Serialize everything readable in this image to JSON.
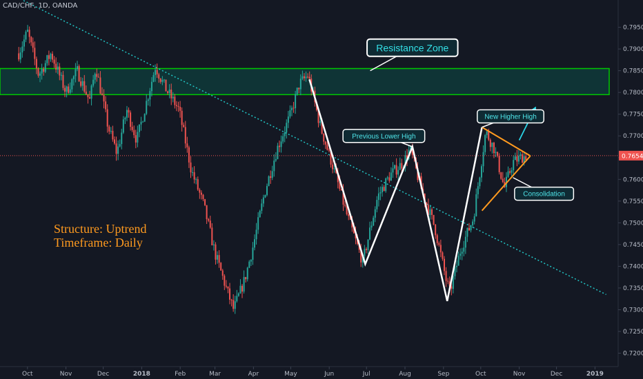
{
  "symbol_label": "CAD/CHF, 1D, OANDA",
  "structure_label": "Structure: Uptrend",
  "timeframe_label": "Timeframe: Daily",
  "colors": {
    "background": "#141823",
    "up_candle": "#26a69a",
    "down_candle": "#ef5350",
    "zone_border": "#00c800",
    "zone_fill": "#0e3a3a",
    "trendline": "#22c7c7",
    "zigzag": "#ffffff",
    "triangle": "#ff9a1f",
    "arrow": "#2ad4e6",
    "price_line": "#ef5350",
    "label_bg": "#0f2a33",
    "axis_text": "#b7bcc7"
  },
  "chart_data": {
    "type": "candlestick",
    "title": "CAD/CHF, 1D, OANDA",
    "x_ticks": [
      "Oct",
      "Nov",
      "Dec",
      "2018",
      "Feb",
      "Mar",
      "Apr",
      "May",
      "Jun",
      "Jul",
      "Aug",
      "Sep",
      "Oct",
      "Nov",
      "Dec",
      "2019"
    ],
    "y_ticks": [
      "0.79500",
      "0.79000",
      "0.78500",
      "0.78000",
      "0.77500",
      "0.77000",
      "0.76500",
      "0.76000",
      "0.75500",
      "0.75000",
      "0.74500",
      "0.74000",
      "0.73500",
      "0.73000",
      "0.72500",
      "0.72000"
    ],
    "ylim": [
      0.7185,
      0.7985
    ],
    "last_price": "0.76546",
    "price_path": [
      [
        "2017-09-24",
        0.789
      ],
      [
        "2017-10-01",
        0.794
      ],
      [
        "2017-10-10",
        0.784
      ],
      [
        "2017-10-20",
        0.789
      ],
      [
        "2017-11-01",
        0.78
      ],
      [
        "2017-11-10",
        0.785
      ],
      [
        "2017-11-20",
        0.778
      ],
      [
        "2017-11-25",
        0.786
      ],
      [
        "2017-12-05",
        0.772
      ],
      [
        "2017-12-12",
        0.766
      ],
      [
        "2017-12-20",
        0.776
      ],
      [
        "2017-12-28",
        0.769
      ],
      [
        "2018-01-05",
        0.778
      ],
      [
        "2018-01-12",
        0.786
      ],
      [
        "2018-01-20",
        0.781
      ],
      [
        "2018-01-31",
        0.776
      ],
      [
        "2018-02-10",
        0.762
      ],
      [
        "2018-02-20",
        0.754
      ],
      [
        "2018-03-01",
        0.743
      ],
      [
        "2018-03-10",
        0.735
      ],
      [
        "2018-03-16",
        0.73
      ],
      [
        "2018-03-25",
        0.737
      ],
      [
        "2018-04-01",
        0.745
      ],
      [
        "2018-04-10",
        0.757
      ],
      [
        "2018-04-20",
        0.767
      ],
      [
        "2018-05-01",
        0.775
      ],
      [
        "2018-05-08",
        0.782
      ],
      [
        "2018-05-15",
        0.784
      ],
      [
        "2018-05-25",
        0.772
      ],
      [
        "2018-06-05",
        0.762
      ],
      [
        "2018-06-15",
        0.752
      ],
      [
        "2018-06-28",
        0.741
      ],
      [
        "2018-07-10",
        0.756
      ],
      [
        "2018-07-20",
        0.761
      ],
      [
        "2018-07-31",
        0.764
      ],
      [
        "2018-08-05",
        0.767
      ],
      [
        "2018-08-15",
        0.757
      ],
      [
        "2018-08-25",
        0.749
      ],
      [
        "2018-09-03",
        0.737
      ],
      [
        "2018-09-06",
        0.734
      ],
      [
        "2018-09-15",
        0.744
      ],
      [
        "2018-09-25",
        0.751
      ],
      [
        "2018-10-05",
        0.771
      ],
      [
        "2018-10-12",
        0.767
      ],
      [
        "2018-10-20",
        0.758
      ],
      [
        "2018-10-27",
        0.764
      ],
      [
        "2018-11-02",
        0.765
      ],
      [
        "2018-11-07",
        0.7655
      ]
    ],
    "zone": {
      "top": 0.7855,
      "bottom": 0.7795
    },
    "trendline": [
      [
        "2017-09-08",
        0.804
      ],
      [
        "2019-01-10",
        0.7335
      ]
    ],
    "zigzag": [
      [
        "2018-05-16",
        0.783
      ],
      [
        "2018-06-30",
        0.7405
      ],
      [
        "2018-08-07",
        0.7675
      ],
      [
        "2018-09-04",
        0.732
      ],
      [
        "2018-10-02",
        0.772
      ]
    ],
    "triangle": {
      "upper": [
        [
          "2018-10-02",
          0.772
        ],
        [
          "2018-11-10",
          0.7654
        ]
      ],
      "lower": [
        [
          "2018-10-02",
          0.7528
        ],
        [
          "2018-11-10",
          0.7654
        ]
      ]
    },
    "arrow": [
      [
        "2018-11-01",
        0.769
      ],
      [
        "2018-11-14",
        0.7765
      ]
    ],
    "annotations": [
      {
        "text": "Resistance Zone",
        "date": "2018-08-07",
        "price": 0.7903,
        "size": "large",
        "pointer": [
          "2018-07-04",
          0.785
        ]
      },
      {
        "text": "New Higher High",
        "date": "2018-10-25",
        "price": 0.7745,
        "size": "small",
        "pointer": [
          "2018-10-02",
          0.772
        ]
      },
      {
        "text": "Previous Lower High",
        "date": "2018-07-15",
        "price": 0.77,
        "size": "small",
        "pointer": [
          "2018-08-07",
          0.7675
        ]
      },
      {
        "text": "Consolidation",
        "date": "2018-11-21",
        "price": 0.7567,
        "size": "small",
        "pointer": [
          "2018-10-27",
          0.7604
        ]
      }
    ]
  }
}
